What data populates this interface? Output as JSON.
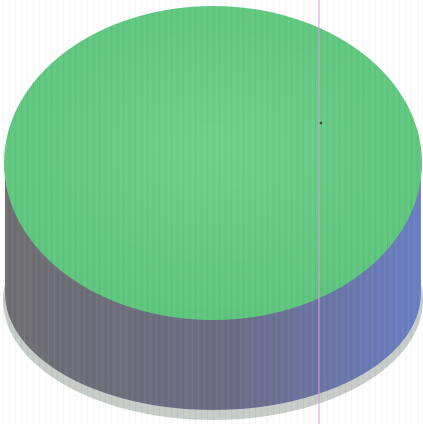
{
  "scene": {
    "subject": "cylinder-disc",
    "colors": {
      "background": "#ffffff",
      "top_face": "#6fd08a",
      "top_face_shadow": "#5cc57c",
      "side_left": "#6f6f72",
      "side_mid": "#6c6c88",
      "side_right": "#6a7fc4",
      "base_rim": "#c7ccc9",
      "scan_line": "#d79ad8",
      "speck": "#3a4a3a"
    }
  }
}
